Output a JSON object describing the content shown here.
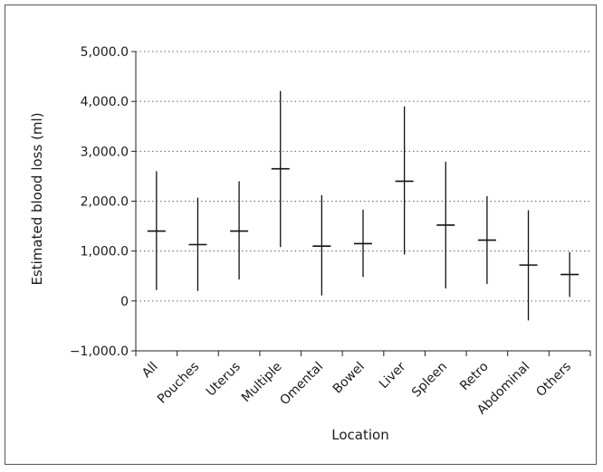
{
  "chart_data": {
    "type": "error-bar",
    "title": "",
    "xlabel": "Location",
    "ylabel": "Estimated blood loss (ml)",
    "ylim": [
      -1000,
      5000
    ],
    "yticks": [
      -1000,
      0,
      1000,
      2000,
      3000,
      4000,
      5000
    ],
    "ytick_labels": [
      "−1,000.0",
      "0",
      "1,000.0",
      "2,000.0",
      "3,000.0",
      "4,000.0",
      "5,000.0"
    ],
    "grid": "horizontal dotted",
    "categories": [
      "All",
      "Pouches",
      "Uterus",
      "Multiple",
      "Omental",
      "Bowel",
      "Liver",
      "Spleen",
      "Retro",
      "Abdominal",
      "Others"
    ],
    "mean": [
      1400,
      1130,
      1400,
      2650,
      1100,
      1150,
      2400,
      1520,
      1220,
      720,
      530
    ],
    "low": [
      220,
      200,
      430,
      1080,
      110,
      480,
      930,
      250,
      340,
      -390,
      80
    ],
    "high": [
      2600,
      2070,
      2400,
      4210,
      2120,
      1830,
      3900,
      2790,
      2100,
      1820,
      980
    ]
  }
}
